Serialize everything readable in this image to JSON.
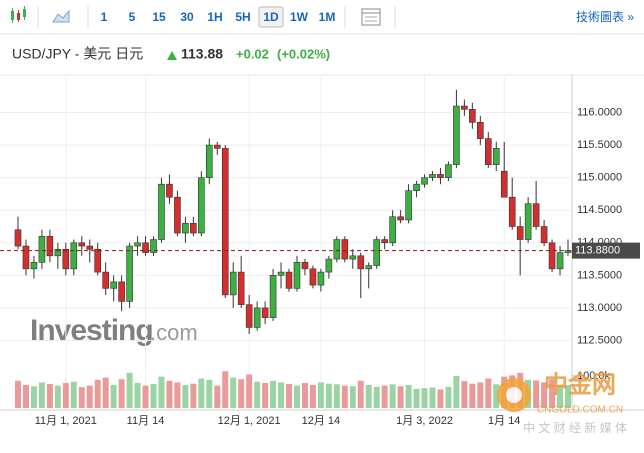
{
  "toolbar": {
    "intervals": [
      "1",
      "5",
      "15",
      "30",
      "1H",
      "5H",
      "1D",
      "1W",
      "1M"
    ],
    "selected": 6,
    "technical": "技術圖表 »"
  },
  "header": {
    "symbol": "USD/JPY - 美元 日元",
    "price": "113.88",
    "change": "+0.02",
    "change_pct": "(+0.02%)"
  },
  "watermark": {
    "brand": "Investing",
    "suffix": ".com"
  },
  "logo": {
    "name": "中金网",
    "site": "CNGOLD.COM.CN",
    "slogan": "中 文 财 经 新 媒 体"
  },
  "chart_data": {
    "type": "candlestick",
    "categories": [
      null,
      null,
      null,
      null,
      null,
      null,
      "11月 1, 2021",
      null,
      null,
      null,
      null,
      null,
      null,
      null,
      null,
      null,
      "11月 14",
      null,
      null,
      null,
      null,
      null,
      null,
      null,
      null,
      null,
      null,
      null,
      null,
      "12月 1, 2021",
      null,
      null,
      null,
      null,
      null,
      null,
      null,
      null,
      "12月 14",
      null,
      null,
      null,
      null,
      null,
      null,
      null,
      null,
      null,
      null,
      null,
      null,
      "1月 3, 2022",
      null,
      null,
      null,
      null,
      null,
      null,
      null,
      null,
      null,
      "1月 14",
      null,
      null,
      null,
      null,
      null,
      null,
      null,
      null
    ],
    "ohlc": [
      [
        114.2,
        114.4,
        113.9,
        113.95
      ],
      [
        113.95,
        114.05,
        113.5,
        113.6
      ],
      [
        113.6,
        113.8,
        113.45,
        113.7
      ],
      [
        113.7,
        114.2,
        113.6,
        114.1
      ],
      [
        114.1,
        114.2,
        113.7,
        113.8
      ],
      [
        113.8,
        114.0,
        113.6,
        113.9
      ],
      [
        113.9,
        114.0,
        113.5,
        113.6
      ],
      [
        113.6,
        114.05,
        113.5,
        114.0
      ],
      [
        114.0,
        114.1,
        113.8,
        113.95
      ],
      [
        113.95,
        114.05,
        113.7,
        113.9
      ],
      [
        113.9,
        114.0,
        113.5,
        113.55
      ],
      [
        113.55,
        113.7,
        113.2,
        113.3
      ],
      [
        113.3,
        113.5,
        113.1,
        113.4
      ],
      [
        113.4,
        113.5,
        112.95,
        113.1
      ],
      [
        113.1,
        114.0,
        113.0,
        113.95
      ],
      [
        113.95,
        114.1,
        113.8,
        114.0
      ],
      [
        114.0,
        114.1,
        113.8,
        113.85
      ],
      [
        113.85,
        114.1,
        113.8,
        114.05
      ],
      [
        114.05,
        115.0,
        114.0,
        114.9
      ],
      [
        114.9,
        115.05,
        114.6,
        114.7
      ],
      [
        114.7,
        114.8,
        114.1,
        114.15
      ],
      [
        114.15,
        114.4,
        114.0,
        114.3
      ],
      [
        114.3,
        114.4,
        114.1,
        114.15
      ],
      [
        114.15,
        115.1,
        114.1,
        115.0
      ],
      [
        115.0,
        115.6,
        114.9,
        115.5
      ],
      [
        115.5,
        115.55,
        115.35,
        115.45
      ],
      [
        115.45,
        115.5,
        113.15,
        113.2
      ],
      [
        113.2,
        113.7,
        113.0,
        113.55
      ],
      [
        113.55,
        113.8,
        113.0,
        113.05
      ],
      [
        113.05,
        113.2,
        112.6,
        112.7
      ],
      [
        112.7,
        113.1,
        112.65,
        113.0
      ],
      [
        113.0,
        113.1,
        112.75,
        112.85
      ],
      [
        112.85,
        113.6,
        112.8,
        113.5
      ],
      [
        113.5,
        113.7,
        113.3,
        113.55
      ],
      [
        113.55,
        113.6,
        113.25,
        113.3
      ],
      [
        113.3,
        113.8,
        113.25,
        113.7
      ],
      [
        113.7,
        113.75,
        113.5,
        113.6
      ],
      [
        113.6,
        113.65,
        113.3,
        113.35
      ],
      [
        113.35,
        113.6,
        113.25,
        113.55
      ],
      [
        113.55,
        113.8,
        113.45,
        113.75
      ],
      [
        113.75,
        114.1,
        113.7,
        114.05
      ],
      [
        114.05,
        114.1,
        113.7,
        113.75
      ],
      [
        113.75,
        113.9,
        113.6,
        113.8
      ],
      [
        113.8,
        113.85,
        113.15,
        113.6
      ],
      [
        113.6,
        113.7,
        113.3,
        113.65
      ],
      [
        113.65,
        114.1,
        113.6,
        114.05
      ],
      [
        114.05,
        114.1,
        113.9,
        114.0
      ],
      [
        114.0,
        114.5,
        113.95,
        114.4
      ],
      [
        114.4,
        114.5,
        114.3,
        114.35
      ],
      [
        114.35,
        114.9,
        114.3,
        114.8
      ],
      [
        114.8,
        114.95,
        114.7,
        114.9
      ],
      [
        114.9,
        115.05,
        114.85,
        115.0
      ],
      [
        115.0,
        115.1,
        114.95,
        115.05
      ],
      [
        115.05,
        115.15,
        114.9,
        115.0
      ],
      [
        115.0,
        115.25,
        114.95,
        115.2
      ],
      [
        115.2,
        116.35,
        115.15,
        116.1
      ],
      [
        116.1,
        116.2,
        115.95,
        116.05
      ],
      [
        116.05,
        116.15,
        115.75,
        115.85
      ],
      [
        115.85,
        115.95,
        115.5,
        115.6
      ],
      [
        115.6,
        115.7,
        115.15,
        115.2
      ],
      [
        115.2,
        115.55,
        115.1,
        115.45
      ],
      [
        115.1,
        115.55,
        114.7,
        114.7
      ],
      [
        114.7,
        115.0,
        114.2,
        114.25
      ],
      [
        114.25,
        114.4,
        113.5,
        114.05
      ],
      [
        114.05,
        114.7,
        114.0,
        114.6
      ],
      [
        114.6,
        114.95,
        114.2,
        114.25
      ],
      [
        114.25,
        114.35,
        113.95,
        114.0
      ],
      [
        114.0,
        114.05,
        113.55,
        113.6
      ],
      [
        113.6,
        113.95,
        113.5,
        113.85
      ],
      [
        113.85,
        114.05,
        113.8,
        113.88
      ]
    ],
    "volume": [
      85000,
      72000,
      68000,
      80000,
      75000,
      70000,
      78000,
      82000,
      65000,
      70000,
      88000,
      95000,
      72000,
      90000,
      110000,
      78000,
      70000,
      75000,
      98000,
      85000,
      80000,
      72000,
      76000,
      92000,
      88000,
      70000,
      115000,
      95000,
      90000,
      105000,
      82000,
      78000,
      85000,
      80000,
      75000,
      70000,
      78000,
      72000,
      80000,
      76000,
      74000,
      70000,
      68000,
      85000,
      72000,
      66000,
      70000,
      74000,
      68000,
      72000,
      60000,
      62000,
      64000,
      58000,
      66000,
      100000,
      84000,
      76000,
      80000,
      92000,
      74000,
      98000,
      102000,
      110000,
      88000,
      86000,
      80000,
      90000,
      70000,
      72000
    ],
    "ylim": [
      112.2,
      116.5
    ],
    "yticks": [
      {
        "value": 112.5,
        "label": "112.5000"
      },
      {
        "value": 113.0,
        "label": "113.0000"
      },
      {
        "value": 113.5,
        "label": "113.5000"
      },
      {
        "value": 114.0,
        "label": "114.0000"
      },
      {
        "value": 114.5,
        "label": "114.5000"
      },
      {
        "value": 115.0,
        "label": "115.0000"
      },
      {
        "value": 115.5,
        "label": "115.5000"
      },
      {
        "value": 116.0,
        "label": "116.0000"
      }
    ],
    "vlim": [
      0,
      130000
    ],
    "vticks": [
      {
        "value": 100000,
        "label": "100.0k"
      }
    ],
    "last_price": {
      "value": 113.88,
      "label": "113.8800"
    },
    "grid": true,
    "up_color": "#3cb043",
    "down_color": "#d32f2f",
    "up_volume_color": "#9ad3a4",
    "down_volume_color": "#eb9a9a"
  }
}
